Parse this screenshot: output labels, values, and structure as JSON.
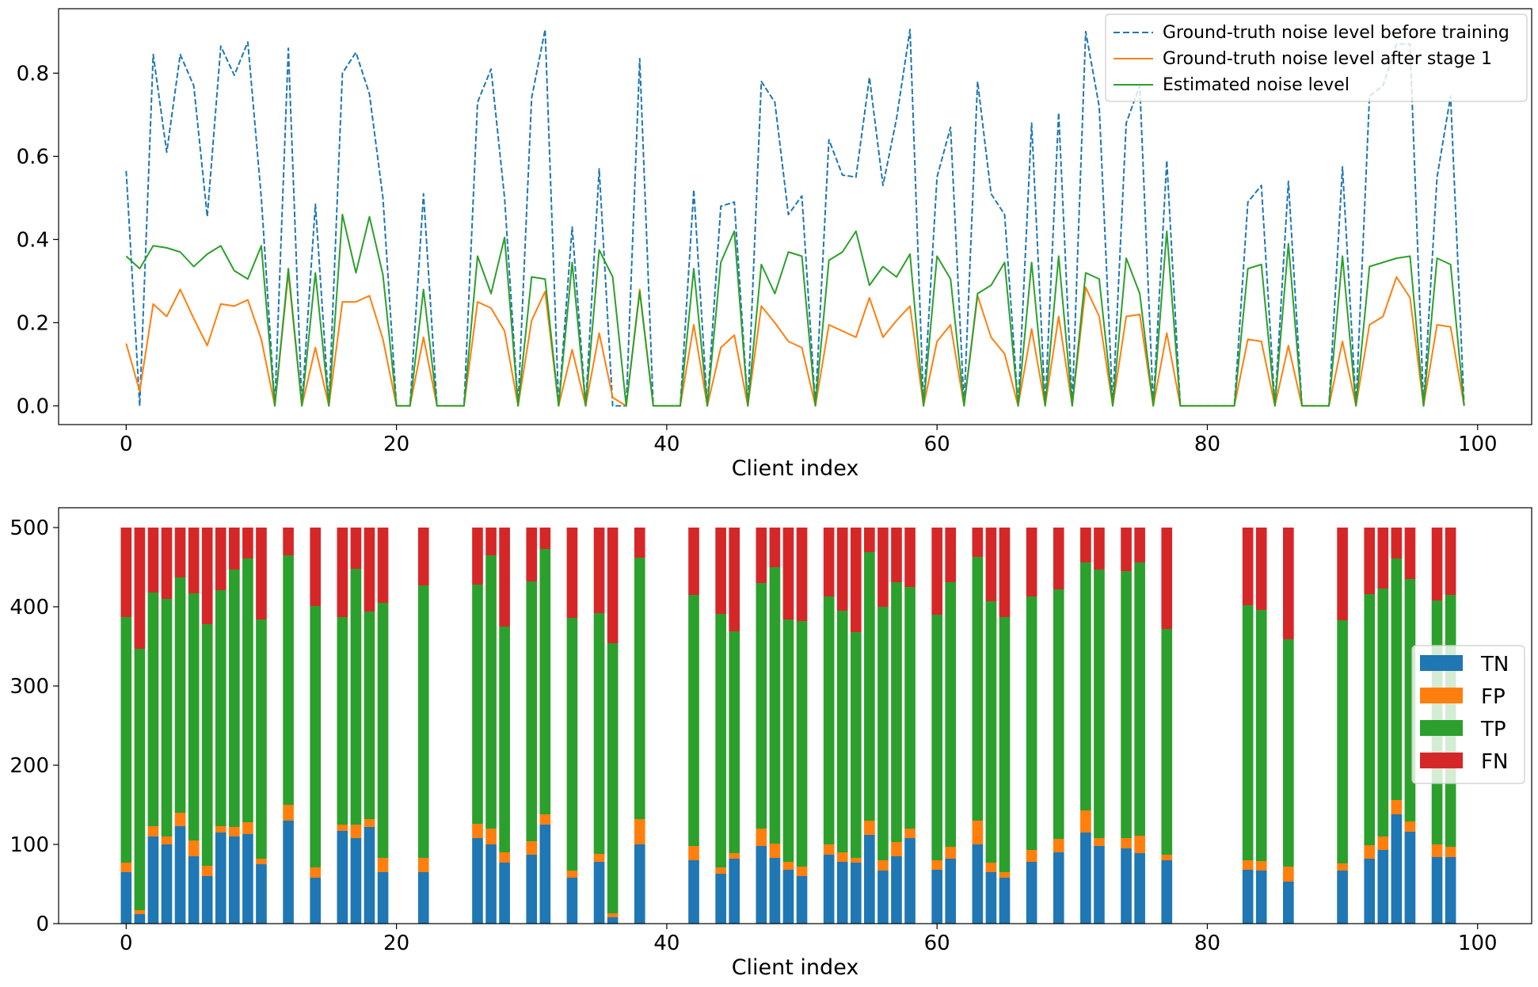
{
  "chart_data": [
    {
      "type": "line",
      "xlabel": "Client index",
      "ylabel": "",
      "xlim": [
        -5,
        104
      ],
      "ylim": [
        -0.045,
        0.955
      ],
      "xticks": [
        0,
        20,
        40,
        60,
        80,
        100
      ],
      "yticks": [
        0.0,
        0.2,
        0.4,
        0.6,
        0.8
      ],
      "ytick_labels": [
        "0.0",
        "0.2",
        "0.4",
        "0.6",
        "0.8"
      ],
      "legend_position": "top-right",
      "x": [
        0,
        1,
        2,
        3,
        4,
        5,
        6,
        7,
        8,
        9,
        10,
        11,
        12,
        13,
        14,
        15,
        16,
        17,
        18,
        19,
        20,
        21,
        22,
        23,
        24,
        25,
        26,
        27,
        28,
        29,
        30,
        31,
        32,
        33,
        34,
        35,
        36,
        37,
        38,
        39,
        40,
        41,
        42,
        43,
        44,
        45,
        46,
        47,
        48,
        49,
        50,
        51,
        52,
        53,
        54,
        55,
        56,
        57,
        58,
        59,
        60,
        61,
        62,
        63,
        64,
        65,
        66,
        67,
        68,
        69,
        70,
        71,
        72,
        73,
        74,
        75,
        76,
        77,
        78,
        79,
        80,
        81,
        82,
        83,
        84,
        85,
        86,
        87,
        88,
        89,
        90,
        91,
        92,
        93,
        94,
        95,
        96,
        97,
        98,
        99
      ],
      "series": [
        {
          "name": "Ground-truth noise level before training",
          "color": "#1f77b4",
          "style": "dashed",
          "values": [
            0.565,
            0.0,
            0.845,
            0.61,
            0.845,
            0.77,
            0.455,
            0.865,
            0.795,
            0.875,
            0.5,
            0.0,
            0.86,
            0.0,
            0.485,
            0.0,
            0.8,
            0.85,
            0.75,
            0.5,
            0.0,
            0.0,
            0.51,
            0.0,
            0.0,
            0.0,
            0.73,
            0.81,
            0.5,
            0.0,
            0.74,
            0.905,
            0.0,
            0.43,
            0.0,
            0.57,
            0.0,
            0.0,
            0.835,
            0.0,
            0.0,
            0.0,
            0.52,
            0.0,
            0.48,
            0.49,
            0.0,
            0.78,
            0.73,
            0.46,
            0.505,
            0.0,
            0.64,
            0.555,
            0.55,
            0.79,
            0.53,
            0.69,
            0.905,
            0.0,
            0.55,
            0.67,
            0.0,
            0.78,
            0.51,
            0.46,
            0.0,
            0.68,
            0.0,
            0.705,
            0.0,
            0.9,
            0.72,
            0.0,
            0.68,
            0.77,
            0.0,
            0.59,
            0.0,
            0.0,
            0.0,
            0.0,
            0.0,
            0.49,
            0.53,
            0.0,
            0.54,
            0.0,
            0.0,
            0.0,
            0.575,
            0.0,
            0.745,
            0.77,
            0.87,
            0.87,
            0.0,
            0.55,
            0.745,
            0.0
          ]
        },
        {
          "name": "Ground-truth noise level after stage 1",
          "color": "#ff7f0e",
          "style": "solid",
          "values": [
            0.15,
            0.035,
            0.245,
            0.215,
            0.28,
            0.21,
            0.145,
            0.245,
            0.24,
            0.255,
            0.16,
            0.0,
            0.32,
            0.0,
            0.14,
            0.0,
            0.25,
            0.25,
            0.265,
            0.16,
            0.0,
            0.0,
            0.165,
            0.0,
            0.0,
            0.0,
            0.25,
            0.235,
            0.18,
            0.0,
            0.205,
            0.275,
            0.0,
            0.135,
            0.0,
            0.175,
            0.02,
            0.0,
            0.28,
            0.0,
            0.0,
            0.0,
            0.195,
            0.0,
            0.14,
            0.17,
            0.0,
            0.24,
            0.2,
            0.155,
            0.14,
            0.0,
            0.195,
            0.18,
            0.165,
            0.26,
            0.165,
            0.205,
            0.24,
            0.0,
            0.155,
            0.195,
            0.0,
            0.265,
            0.165,
            0.125,
            0.0,
            0.185,
            0.0,
            0.215,
            0.0,
            0.285,
            0.215,
            0.0,
            0.215,
            0.22,
            0.0,
            0.175,
            0.0,
            0.0,
            0.0,
            0.0,
            0.0,
            0.16,
            0.155,
            0.0,
            0.145,
            0.0,
            0.0,
            0.0,
            0.155,
            0.0,
            0.195,
            0.215,
            0.31,
            0.26,
            0.0,
            0.195,
            0.19,
            0.0
          ]
        },
        {
          "name": "Estimated noise level",
          "color": "#2ca02c",
          "style": "solid",
          "values": [
            0.36,
            0.33,
            0.385,
            0.38,
            0.37,
            0.335,
            0.365,
            0.385,
            0.325,
            0.305,
            0.385,
            0.0,
            0.33,
            0.0,
            0.32,
            0.0,
            0.46,
            0.32,
            0.455,
            0.315,
            0.0,
            0.0,
            0.28,
            0.0,
            0.0,
            0.0,
            0.36,
            0.27,
            0.405,
            0.0,
            0.31,
            0.305,
            0.0,
            0.345,
            0.0,
            0.375,
            0.31,
            0.0,
            0.275,
            0.0,
            0.0,
            0.0,
            0.33,
            0.0,
            0.345,
            0.42,
            0.0,
            0.34,
            0.27,
            0.37,
            0.36,
            0.0,
            0.35,
            0.37,
            0.42,
            0.29,
            0.335,
            0.31,
            0.365,
            0.0,
            0.36,
            0.305,
            0.0,
            0.27,
            0.29,
            0.345,
            0.0,
            0.345,
            0.0,
            0.36,
            0.0,
            0.32,
            0.305,
            0.0,
            0.355,
            0.27,
            0.0,
            0.42,
            0.0,
            0.0,
            0.0,
            0.0,
            0.0,
            0.33,
            0.34,
            0.0,
            0.39,
            0.0,
            0.0,
            0.0,
            0.36,
            0.0,
            0.335,
            0.345,
            0.355,
            0.36,
            0.0,
            0.355,
            0.34,
            0.0
          ]
        }
      ]
    },
    {
      "type": "bar",
      "stacked": true,
      "xlabel": "Client index",
      "ylabel": "",
      "xlim": [
        -5,
        104
      ],
      "ylim": [
        0,
        525
      ],
      "xticks": [
        0,
        20,
        40,
        60,
        80,
        100
      ],
      "yticks": [
        0,
        100,
        200,
        300,
        400,
        500
      ],
      "legend_position": "right",
      "bar_total": 500,
      "clients": [
        0,
        1,
        2,
        3,
        4,
        5,
        6,
        7,
        8,
        9,
        10,
        12,
        14,
        16,
        17,
        18,
        19,
        22,
        26,
        27,
        28,
        30,
        31,
        33,
        35,
        36,
        38,
        42,
        44,
        45,
        47,
        48,
        49,
        50,
        52,
        53,
        54,
        55,
        56,
        57,
        58,
        60,
        61,
        63,
        64,
        65,
        67,
        69,
        71,
        72,
        74,
        75,
        77,
        83,
        84,
        86,
        90,
        92,
        93,
        94,
        95,
        97,
        98
      ],
      "series": [
        {
          "name": "TN",
          "color": "#1f77b4",
          "values": [
            65,
            12,
            110,
            100,
            123,
            85,
            60,
            115,
            110,
            113,
            75,
            130,
            58,
            117,
            108,
            122,
            65,
            65,
            108,
            100,
            77,
            87,
            125,
            58,
            78,
            8,
            100,
            80,
            63,
            82,
            98,
            83,
            68,
            60,
            87,
            78,
            77,
            112,
            67,
            85,
            108,
            68,
            82,
            100,
            65,
            58,
            78,
            90,
            115,
            98,
            95,
            89,
            80,
            68,
            67,
            53,
            67,
            82,
            93,
            138,
            116,
            84,
            84
          ]
        },
        {
          "name": "FP",
          "color": "#ff7f0e",
          "values": [
            12,
            5,
            13,
            10,
            17,
            20,
            13,
            8,
            12,
            15,
            7,
            20,
            13,
            8,
            17,
            10,
            18,
            18,
            18,
            20,
            13,
            17,
            13,
            9,
            10,
            5,
            32,
            18,
            8,
            7,
            22,
            18,
            10,
            12,
            13,
            12,
            6,
            18,
            13,
            18,
            12,
            12,
            15,
            30,
            12,
            7,
            15,
            17,
            28,
            10,
            13,
            22,
            7,
            12,
            12,
            19,
            9,
            17,
            17,
            18,
            13,
            16,
            13
          ]
        },
        {
          "name": "TP",
          "color": "#2ca02c",
          "values": [
            310,
            330,
            295,
            300,
            297,
            312,
            305,
            298,
            325,
            333,
            302,
            315,
            330,
            262,
            323,
            262,
            322,
            344,
            302,
            345,
            285,
            328,
            335,
            319,
            304,
            341,
            330,
            317,
            320,
            280,
            310,
            349,
            306,
            310,
            313,
            305,
            285,
            339,
            320,
            328,
            305,
            310,
            334,
            333,
            330,
            322,
            320,
            315,
            313,
            339,
            337,
            345,
            285,
            322,
            317,
            287,
            307,
            317,
            313,
            305,
            306,
            308,
            318
          ]
        },
        {
          "name": "FN",
          "color": "#d62728",
          "values": [
            113,
            153,
            82,
            90,
            63,
            83,
            122,
            79,
            53,
            39,
            116,
            35,
            99,
            113,
            52,
            106,
            95,
            73,
            72,
            35,
            125,
            68,
            27,
            114,
            108,
            146,
            38,
            85,
            109,
            131,
            70,
            50,
            116,
            118,
            87,
            105,
            132,
            31,
            100,
            69,
            75,
            110,
            69,
            37,
            93,
            113,
            87,
            78,
            44,
            53,
            55,
            44,
            128,
            98,
            104,
            141,
            117,
            84,
            77,
            39,
            65,
            92,
            85
          ]
        }
      ]
    }
  ]
}
